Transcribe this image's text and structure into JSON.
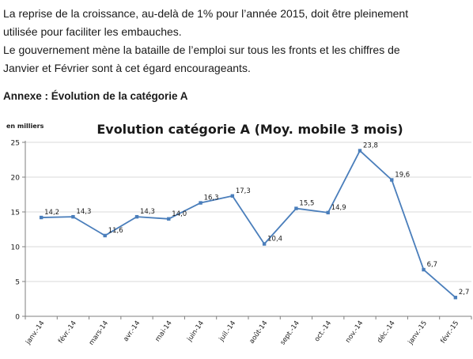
{
  "article": {
    "lines": [
      "La reprise de la croissance, au-delà de 1% pour l’année 2015, doit être pleinement",
      "utilisée pour faciliter les embauches.",
      "Le gouvernement mène la bataille de l’emploi sur tous les fronts et les chiffres de",
      "Janvier et Février sont à cet égard encourageants."
    ],
    "annex_title": "Annexe : Évolution de la catégorie A"
  },
  "chart_data": {
    "type": "line",
    "title": "Evolution catégorie A (Moy. mobile 3 mois)",
    "unit_label": "en milliers",
    "categories": [
      "janv.-14",
      "févr.-14",
      "mars-14",
      "avr.-14",
      "mai-14",
      "juin-14",
      "juil.-14",
      "août-14",
      "sept.-14",
      "oct.-14",
      "nov.-14",
      "déc.-14",
      "janv.-15",
      "févr.-15"
    ],
    "values": [
      14.2,
      14.3,
      11.6,
      14.3,
      14.0,
      16.3,
      17.3,
      10.4,
      15.5,
      14.9,
      23.8,
      19.6,
      6.7,
      2.7
    ],
    "labels": [
      "14,2",
      "14,3",
      "11,6",
      "14,3",
      "14,0",
      "16,3",
      "17,3",
      "10,4",
      "15,5",
      "14,9",
      "23,8",
      "19,6",
      "6,7",
      "2,7"
    ],
    "ylim": [
      0,
      25
    ],
    "yticks": [
      0,
      5,
      10,
      15,
      20,
      25
    ],
    "grid": true,
    "line_color": "#4a7ebb",
    "grid_color": "#d9d9d9"
  }
}
